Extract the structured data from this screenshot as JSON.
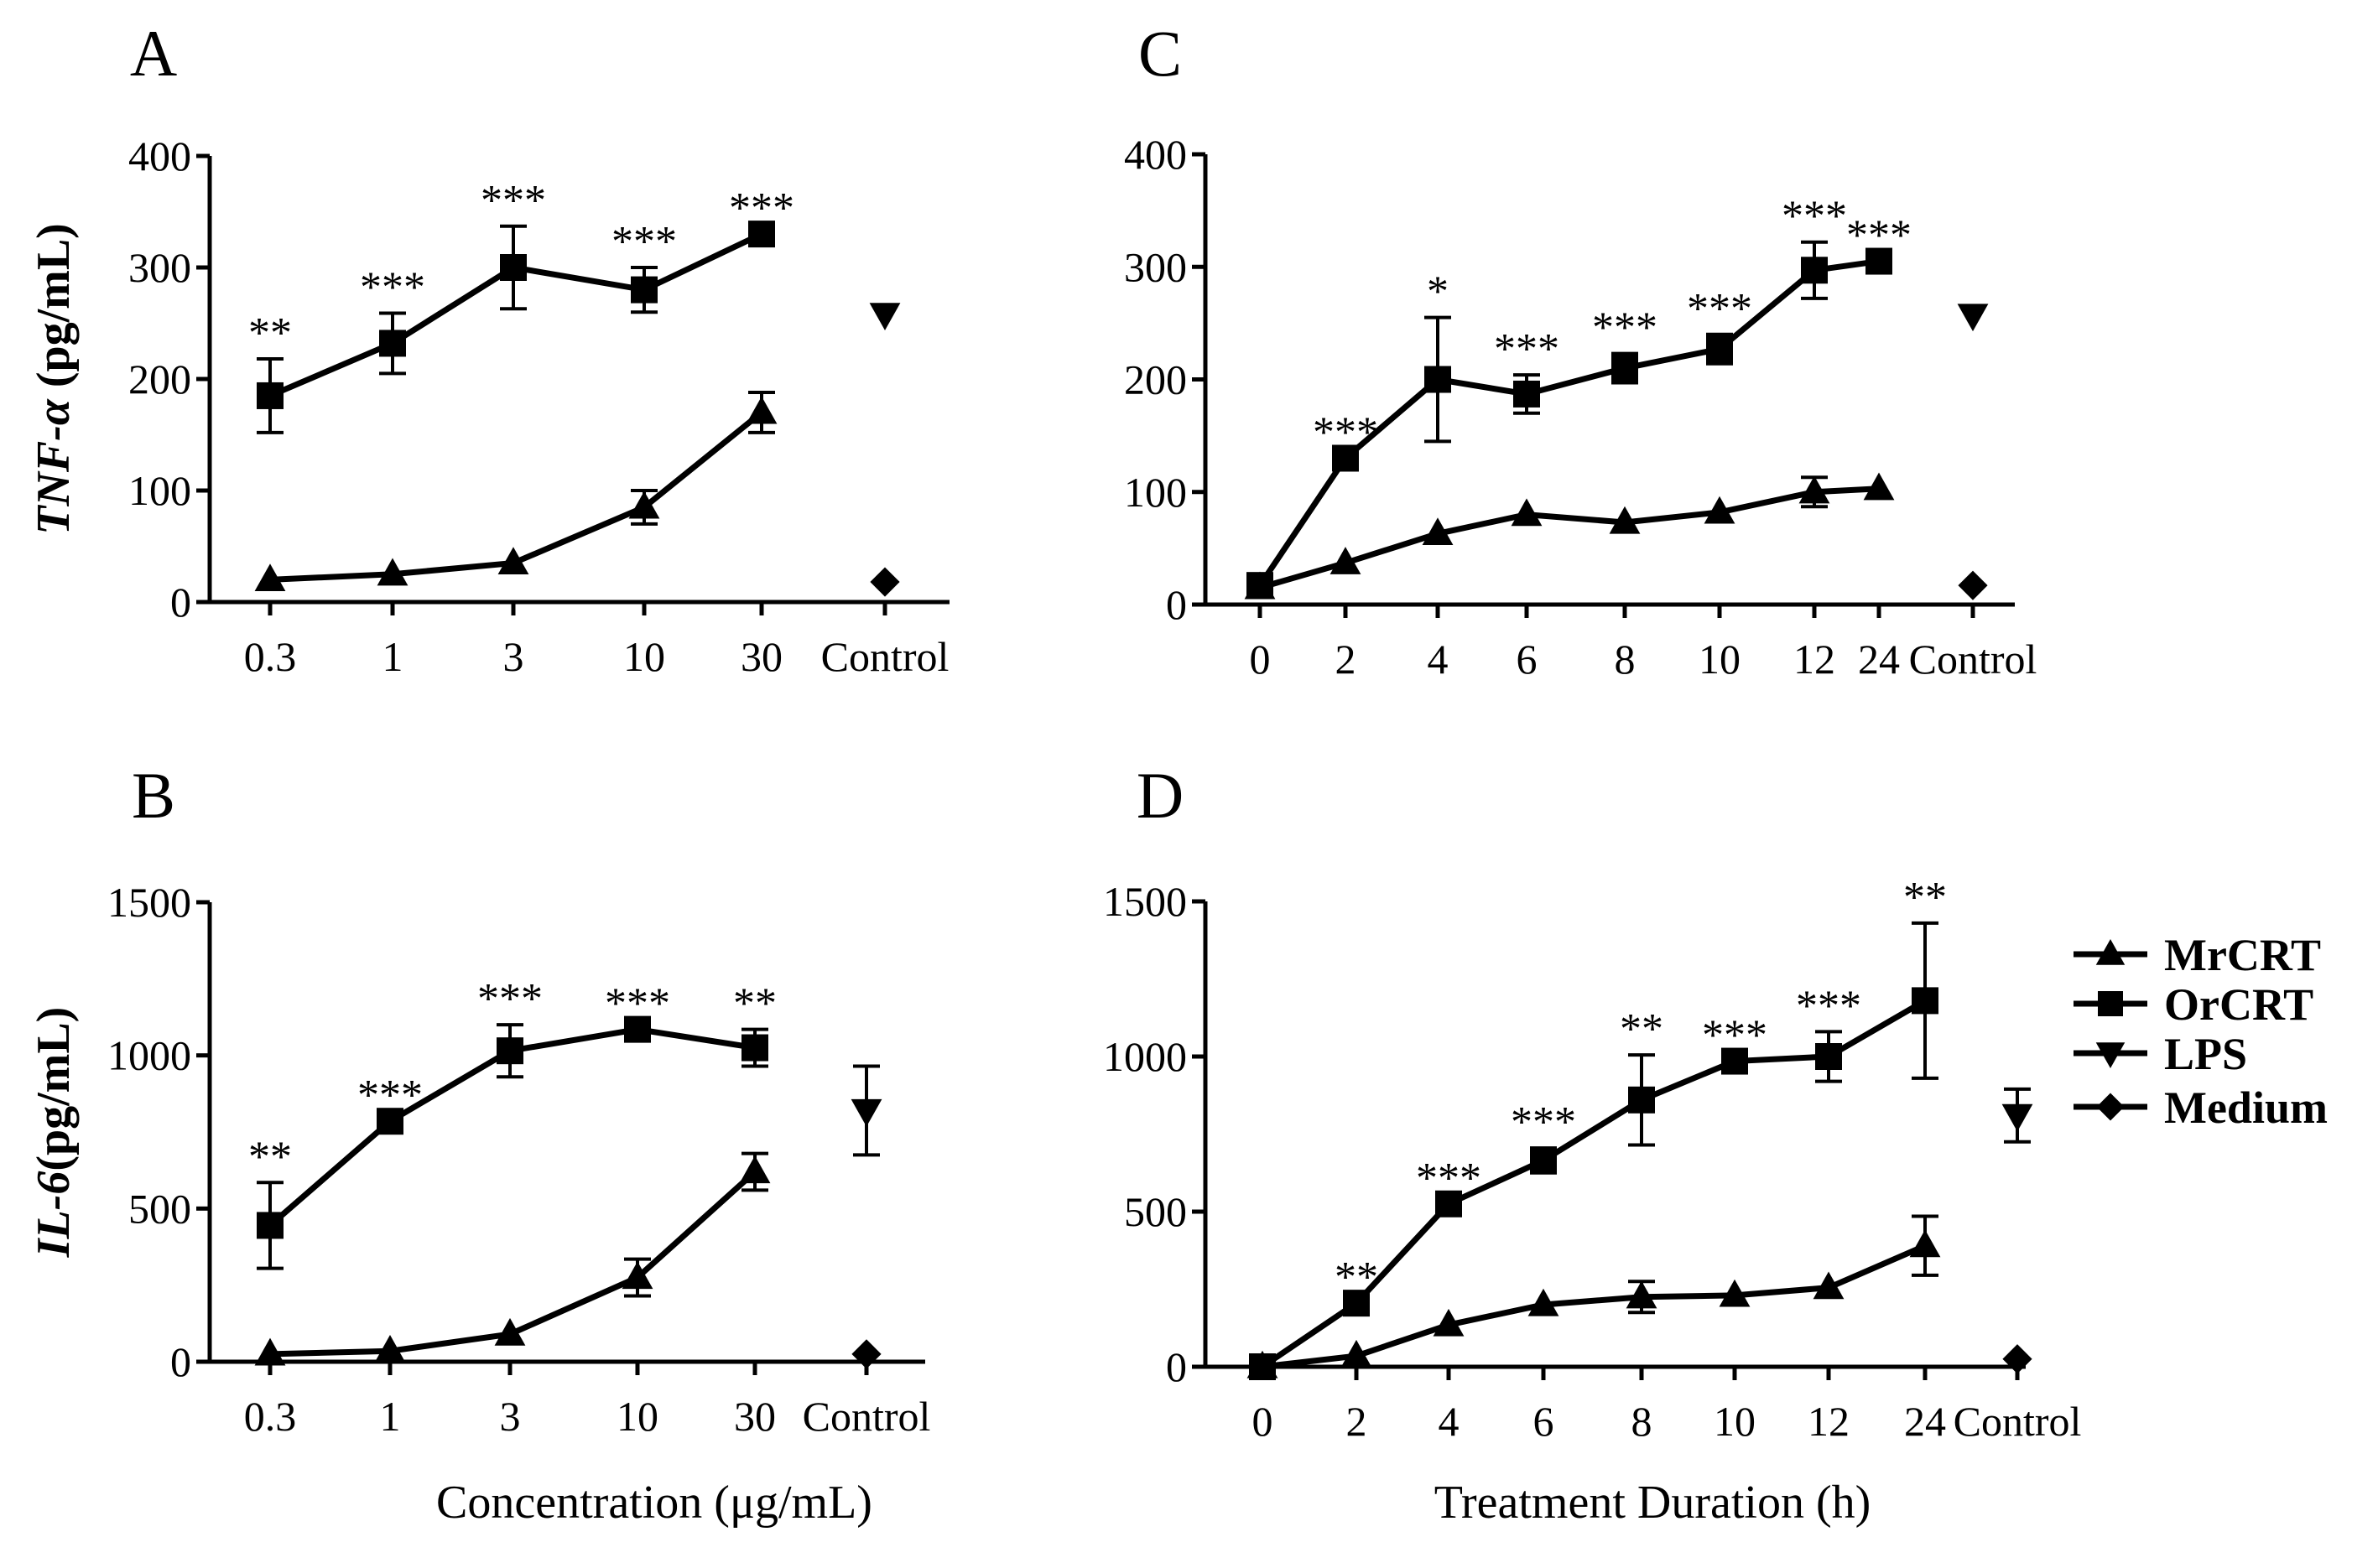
{
  "figure": {
    "legend": {
      "entries": [
        {
          "label": "MrCRT",
          "marker": "triangle-up"
        },
        {
          "label": "OrCRT",
          "marker": "square"
        },
        {
          "label": "LPS",
          "marker": "triangle-down"
        },
        {
          "label": "Medium",
          "marker": "diamond"
        }
      ]
    }
  },
  "chart_data": [
    {
      "type": "line",
      "panel": "A",
      "ylabel_italic": "TNF-α",
      "ylabel_rest": " (pg/mL)",
      "xlabel": "",
      "categories": [
        "0.3",
        "1",
        "3",
        "10",
        "30"
      ],
      "control_label": "Control",
      "ylim": [
        0,
        400
      ],
      "yticks": [
        "0",
        "100",
        "200",
        "300",
        "400"
      ],
      "series": [
        {
          "name": "MrCRT",
          "values": [
            20,
            25,
            35,
            85,
            170
          ],
          "errors": [
            0,
            0,
            0,
            15,
            18
          ]
        },
        {
          "name": "OrCRT",
          "values": [
            185,
            232,
            300,
            280,
            330
          ],
          "errors": [
            33,
            27,
            37,
            20,
            0
          ]
        }
      ],
      "controls": {
        "LPS": {
          "value": 258,
          "error": 0
        },
        "Medium": {
          "value": 18,
          "error": 0
        }
      },
      "significance": [
        "**",
        "***",
        "***",
        "***",
        "***"
      ]
    },
    {
      "type": "line",
      "panel": "B",
      "ylabel_italic": "IL-6",
      "ylabel_rest": "(pg/mL)",
      "xlabel": "Concentration  (μg/mL)",
      "categories": [
        "0.3",
        "1",
        "3",
        "10",
        "30"
      ],
      "control_label": "Control",
      "ylim": [
        0,
        1500
      ],
      "yticks": [
        "0",
        "500",
        "1000",
        "1500"
      ],
      "series": [
        {
          "name": "MrCRT",
          "values": [
            25,
            35,
            90,
            275,
            620
          ],
          "errors": [
            0,
            0,
            0,
            60,
            60
          ]
        },
        {
          "name": "OrCRT",
          "values": [
            445,
            785,
            1015,
            1085,
            1025
          ],
          "errors": [
            140,
            0,
            85,
            0,
            60
          ]
        }
      ],
      "controls": {
        "LPS": {
          "value": 820,
          "error": 145
        },
        "Medium": {
          "value": 25,
          "error": 0
        }
      },
      "significance": [
        "**",
        "***",
        "***",
        "***",
        "**"
      ]
    },
    {
      "type": "line",
      "panel": "C",
      "ylabel_italic": "",
      "ylabel_rest": "",
      "xlabel": "",
      "categories": [
        "0",
        "2",
        "4",
        "6",
        "8",
        "10",
        "12",
        "24"
      ],
      "control_label": "Control",
      "ylim": [
        0,
        400
      ],
      "yticks": [
        "0",
        "100",
        "200",
        "300",
        "400"
      ],
      "series": [
        {
          "name": "MrCRT",
          "values": [
            15,
            37,
            63,
            80,
            73,
            82,
            100,
            103
          ],
          "errors": [
            0,
            0,
            0,
            0,
            0,
            0,
            13,
            0
          ]
        },
        {
          "name": "OrCRT",
          "values": [
            17,
            130,
            200,
            187,
            210,
            227,
            297,
            305
          ],
          "errors": [
            0,
            0,
            55,
            17,
            13,
            13,
            25,
            0
          ]
        }
      ],
      "controls": {
        "LPS": {
          "value": 257,
          "error": 0
        },
        "Medium": {
          "value": 17,
          "error": 0
        }
      },
      "significance": [
        "",
        "***",
        "*",
        "***",
        "***",
        "***",
        "***",
        "***"
      ]
    },
    {
      "type": "line",
      "panel": "D",
      "ylabel_italic": "",
      "ylabel_rest": "",
      "xlabel": "Treatment Duration (h)",
      "categories": [
        "0",
        "2",
        "4",
        "6",
        "8",
        "10",
        "12",
        "24"
      ],
      "control_label": "Control",
      "ylim": [
        0,
        1500
      ],
      "yticks": [
        "0",
        "500",
        "1000",
        "1500"
      ],
      "series": [
        {
          "name": "MrCRT",
          "values": [
            0,
            35,
            135,
            200,
            225,
            230,
            255,
            390
          ],
          "errors": [
            0,
            0,
            0,
            0,
            50,
            0,
            0,
            95
          ]
        },
        {
          "name": "OrCRT",
          "values": [
            0,
            205,
            525,
            665,
            860,
            985,
            1000,
            1180
          ],
          "errors": [
            0,
            0,
            0,
            40,
            145,
            0,
            80,
            250
          ]
        }
      ],
      "controls": {
        "LPS": {
          "value": 810,
          "error": 85
        },
        "Medium": {
          "value": 25,
          "error": 0
        }
      },
      "significance": [
        "",
        "**",
        "***",
        "***",
        "**",
        "***",
        "***",
        "**"
      ]
    }
  ]
}
